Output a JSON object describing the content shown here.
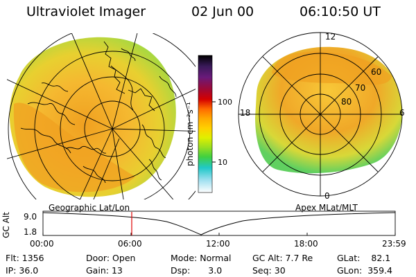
{
  "header": {
    "title": "Ultraviolet Imager",
    "date": "02 Jun 00",
    "time": "06:10:50 UT"
  },
  "left_map": {
    "projection_label": "Geographic Lat/Lon"
  },
  "right_map": {
    "projection_label": "Apex MLat/MLT",
    "mlt_labels": {
      "top": "12",
      "left": "18",
      "right": "6",
      "bottom": "0"
    },
    "lat_labels": [
      "60",
      "70",
      "80"
    ]
  },
  "colorbar": {
    "unit_label": "photon cm⁻²s⁻¹",
    "ticks": [
      "100",
      "10"
    ],
    "colors_top_to_bottom": [
      "#000000",
      "#3a1a5a",
      "#6a1a7a",
      "#9a0a3a",
      "#d40000",
      "#ff6a00",
      "#ffa800",
      "#ffd000",
      "#e0f000",
      "#9adf20",
      "#40d040",
      "#20c8c8",
      "#a0e0f0",
      "#ffffff"
    ]
  },
  "altitude_plot": {
    "ylabel": "GC Alt",
    "y_ticks": [
      "9.0",
      "1.8"
    ],
    "x_ticks": [
      "00:00",
      "06:00",
      "12:00",
      "18:00",
      "23:59"
    ],
    "marker_time": "06:10",
    "marker_color": "#e00000"
  },
  "info": {
    "flt_label": "Flt:",
    "flt_value": "1356",
    "ip_label": "IP:",
    "ip_value": "36.0",
    "door_label": "Door:",
    "door_value": "Open",
    "gain_label": "Gain:",
    "gain_value": "13",
    "mode_label": "Mode:",
    "mode_value": "Normal",
    "dsp_label": "Dsp:",
    "dsp_value": "3.0",
    "gcalt_label": "GC Alt:",
    "gcalt_value": "7.7 Re",
    "seq_label": "Seq:",
    "seq_value": "30",
    "glat_label": "GLat:",
    "glat_value": "82.1",
    "glon_label": "GLon:",
    "glon_value": "359.4"
  }
}
